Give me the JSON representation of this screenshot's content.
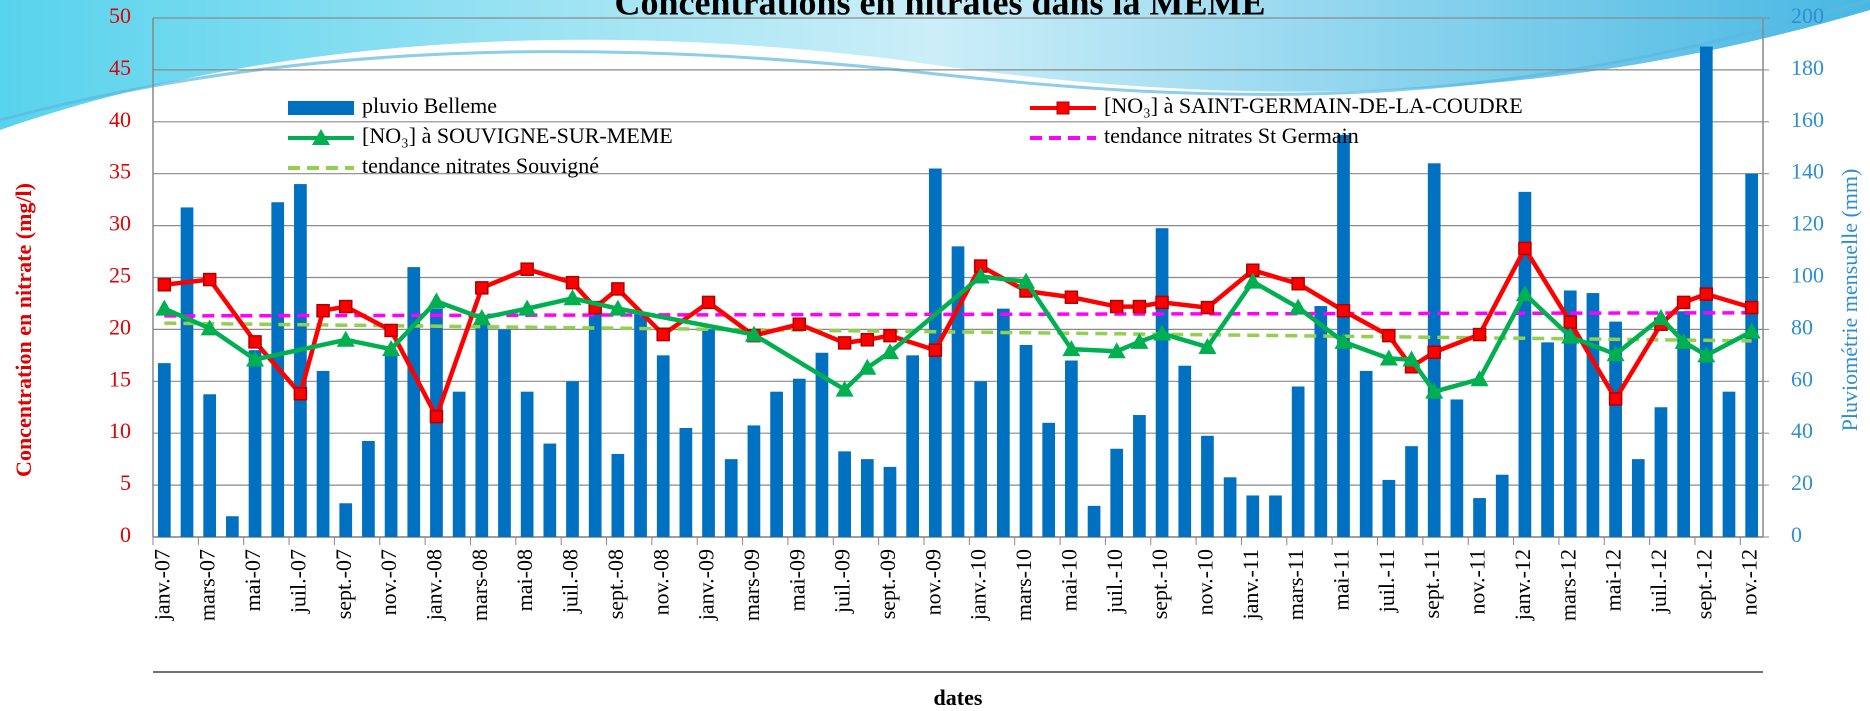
{
  "chart_data": {
    "type": "combo",
    "title": "Concentrations en nitrates dans la MEME",
    "y_label": "Concentration en nitrate (mg/l)",
    "y2_label": "Pluviométrie mensuelle (mm)",
    "x_label": "dates",
    "categories": [
      "janv.-07",
      null,
      "mars-07",
      null,
      "mai-07",
      null,
      "juil.-07",
      null,
      "sept.-07",
      null,
      "nov.-07",
      null,
      "janv.-08",
      null,
      "mars-08",
      null,
      "mai-08",
      null,
      "juil.-08",
      null,
      "sept.-08",
      null,
      "nov.-08",
      null,
      "janv.-09",
      null,
      "mars-09",
      null,
      "mai-09",
      null,
      "juil.-09",
      null,
      "sept.-09",
      null,
      "nov.-09",
      null,
      "janv.-10",
      null,
      "mars-10",
      null,
      "mai-10",
      null,
      "juil.-10",
      null,
      "sept.-10",
      null,
      "nov.-10",
      null,
      "janv.-11",
      null,
      "mars-11",
      null,
      "mai-11",
      null,
      "juil.-11",
      null,
      "sept.-11",
      null,
      "nov.-11",
      null,
      "janv.-12",
      null,
      "mars-12",
      null,
      "mai-12",
      null,
      "juil.-12",
      null,
      "sept.-12",
      null,
      "nov.-12"
    ],
    "ylim": [
      0,
      50
    ],
    "yticks": [
      0,
      5,
      10,
      15,
      20,
      25,
      30,
      35,
      40,
      45,
      50
    ],
    "y2lim": [
      0,
      200
    ],
    "y2ticks": [
      0,
      20,
      40,
      60,
      80,
      100,
      120,
      140,
      160,
      180,
      200
    ],
    "grid": true,
    "series": [
      {
        "name": "pluvio Belleme",
        "type": "bar",
        "axis": "y2",
        "color": "#0070c0",
        "values": [
          67,
          127,
          55,
          8,
          72,
          129,
          136,
          64,
          13,
          37,
          72,
          104,
          88,
          56,
          84,
          80,
          56,
          36,
          60,
          86,
          32,
          86,
          70,
          42,
          80,
          30,
          43,
          56,
          61,
          71,
          33,
          30,
          27,
          70,
          142,
          112,
          60,
          88,
          74,
          44,
          68,
          12,
          34,
          47,
          119,
          66,
          39,
          23,
          16,
          16,
          58,
          89,
          155,
          64,
          22,
          35,
          144,
          53,
          15,
          24,
          133,
          75,
          95,
          94,
          83,
          30,
          50,
          87,
          189,
          56,
          140
        ]
      },
      {
        "name": "[NO₃] à SAINT-GERMAIN-DE-LA-COUDRE",
        "type": "line",
        "marker": "square",
        "color": "#ff0000",
        "x": [
          0,
          2,
          4,
          6,
          7,
          8,
          10,
          12,
          14,
          16,
          18,
          19,
          20,
          22,
          24,
          26,
          28,
          30,
          31,
          32,
          34,
          36,
          38,
          40,
          42,
          43,
          44,
          46,
          48,
          50,
          52,
          54,
          55,
          56,
          58,
          60,
          62,
          64,
          66,
          67,
          68,
          70
        ],
        "values": [
          24.3,
          24.8,
          18.8,
          13.8,
          21.8,
          22.2,
          19.9,
          11.6,
          24,
          25.8,
          24.5,
          22.1,
          23.9,
          19.5,
          22.6,
          19.4,
          20.5,
          18.7,
          19,
          19.4,
          18,
          26.1,
          23.7,
          23.1,
          22.2,
          22.2,
          22.6,
          22.1,
          25.7,
          24.4,
          21.8,
          19.4,
          16.4,
          17.8,
          19.5,
          27.8,
          20.7,
          13.3,
          20.5,
          22.6,
          23.4,
          22.1
        ]
      },
      {
        "name": "[NO₃] à SOUVIGNE-SUR-MEME",
        "type": "line",
        "marker": "triangle",
        "color": "#00b050",
        "x": [
          0,
          2,
          4,
          8,
          10,
          12,
          14,
          16,
          18,
          20,
          26,
          30,
          31,
          32,
          36,
          38,
          40,
          42,
          43,
          44,
          46,
          48,
          50,
          52,
          54,
          55,
          56,
          58,
          60,
          62,
          64,
          66,
          67,
          68,
          70
        ],
        "values": [
          22,
          20.1,
          17.1,
          19,
          18.1,
          22.7,
          21.1,
          22,
          23,
          22,
          19.5,
          14.2,
          16.3,
          17.8,
          25.1,
          24.6,
          18.1,
          17.9,
          18.8,
          19.6,
          18.3,
          24.6,
          22.1,
          18.8,
          17.2,
          17.1,
          14,
          15.2,
          23.4,
          19.3,
          17.6,
          21.1,
          18.8,
          17.5,
          19.8
        ]
      },
      {
        "name": "tendance nitrates St Germain",
        "type": "trend",
        "color": "#ff00ff",
        "x": [
          0,
          70
        ],
        "values": [
          21.3,
          21.6
        ]
      },
      {
        "name": "tendance nitrates Souvigné",
        "type": "trend",
        "color": "#92d050",
        "x": [
          0,
          70
        ],
        "values": [
          20.6,
          18.9
        ]
      }
    ]
  }
}
